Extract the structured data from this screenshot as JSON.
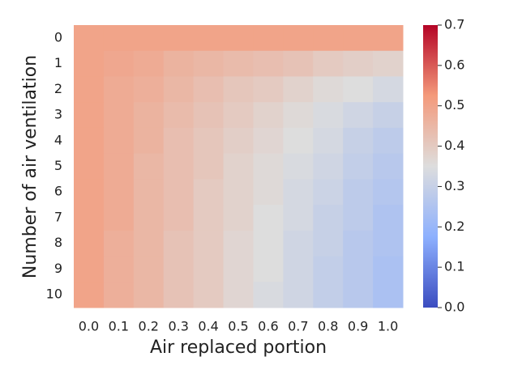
{
  "chart_data": {
    "type": "heatmap",
    "xlabel": "Air replaced portion",
    "ylabel": "Number of air ventilation",
    "x_categories": [
      "0.0",
      "0.1",
      "0.2",
      "0.3",
      "0.4",
      "0.5",
      "0.6",
      "0.7",
      "0.8",
      "0.9",
      "1.0"
    ],
    "y_categories": [
      "0",
      "1",
      "2",
      "3",
      "4",
      "5",
      "6",
      "7",
      "8",
      "9",
      "10"
    ],
    "values": [
      [
        0.5,
        0.5,
        0.5,
        0.5,
        0.5,
        0.5,
        0.5,
        0.5,
        0.5,
        0.5,
        0.5
      ],
      [
        0.5,
        0.49,
        0.48,
        0.46,
        0.45,
        0.44,
        0.43,
        0.42,
        0.4,
        0.39,
        0.38
      ],
      [
        0.5,
        0.48,
        0.47,
        0.45,
        0.43,
        0.41,
        0.4,
        0.38,
        0.36,
        0.35,
        0.33
      ],
      [
        0.5,
        0.48,
        0.46,
        0.44,
        0.42,
        0.4,
        0.38,
        0.36,
        0.34,
        0.32,
        0.3
      ],
      [
        0.5,
        0.48,
        0.46,
        0.43,
        0.41,
        0.39,
        0.37,
        0.35,
        0.33,
        0.3,
        0.28
      ],
      [
        0.5,
        0.48,
        0.45,
        0.43,
        0.41,
        0.38,
        0.36,
        0.34,
        0.32,
        0.29,
        0.27
      ],
      [
        0.5,
        0.48,
        0.45,
        0.43,
        0.4,
        0.38,
        0.36,
        0.33,
        0.31,
        0.28,
        0.26
      ],
      [
        0.5,
        0.48,
        0.45,
        0.43,
        0.4,
        0.38,
        0.35,
        0.33,
        0.3,
        0.28,
        0.25
      ],
      [
        0.5,
        0.47,
        0.45,
        0.42,
        0.4,
        0.37,
        0.35,
        0.32,
        0.3,
        0.27,
        0.25
      ],
      [
        0.5,
        0.47,
        0.45,
        0.42,
        0.4,
        0.37,
        0.35,
        0.32,
        0.29,
        0.27,
        0.24
      ],
      [
        0.5,
        0.47,
        0.45,
        0.42,
        0.4,
        0.37,
        0.34,
        0.32,
        0.29,
        0.27,
        0.24
      ]
    ],
    "colormap": "coolwarm",
    "zlim": [
      0,
      0.7
    ],
    "zticks": [
      {
        "value": 0,
        "label": "0.0"
      },
      {
        "value": 0.1,
        "label": "0.1"
      },
      {
        "value": 0.2,
        "label": "0.2"
      },
      {
        "value": 0.3,
        "label": "0.3"
      },
      {
        "value": 0.4,
        "label": "0.4"
      },
      {
        "value": 0.5,
        "label": "0.5"
      },
      {
        "value": 0.6,
        "label": "0.6"
      },
      {
        "value": 0.7,
        "label": "0.7"
      }
    ]
  }
}
